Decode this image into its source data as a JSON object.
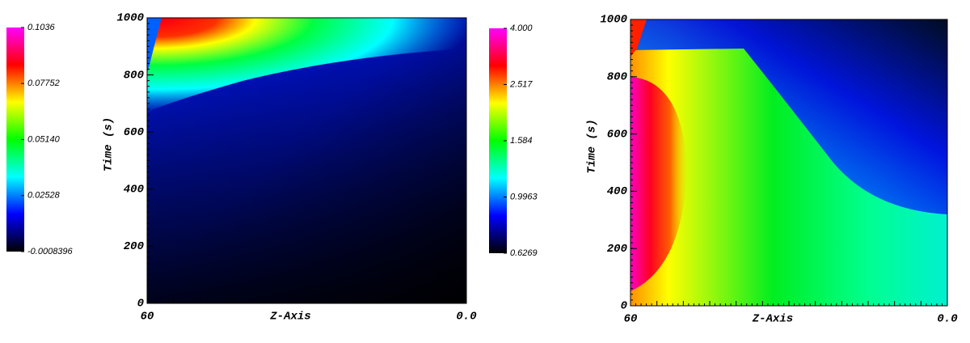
{
  "chart_data": [
    {
      "type": "heatmap",
      "x_label": "Z-Axis",
      "y_label": "Time (s)",
      "xlim": [
        60,
        0
      ],
      "xticks": [
        60,
        {
          "value": 0,
          "label": "0.0"
        }
      ],
      "ylim": [
        0,
        1000
      ],
      "yticks": [
        0,
        200,
        400,
        600,
        800,
        1000
      ],
      "colormap": [
        "#000000",
        "#0000ff",
        "#00ffff",
        "#00ff00",
        "#ffff00",
        "#ff0000",
        "#ff00ff"
      ],
      "colorbar": {
        "lim": [
          -0.0008396,
          0.1036
        ],
        "log": false,
        "ticks": [
          0.1036,
          0.07752,
          {
            "value": 0.0514,
            "label": "0.05140"
          },
          0.02528,
          -0.0008396
        ]
      }
    },
    {
      "type": "heatmap",
      "x_label": "Z-Axis",
      "y_label": "Time (s)",
      "xlim": [
        60,
        0
      ],
      "xticks": [
        60,
        {
          "value": 0,
          "label": "0.0"
        }
      ],
      "ylim": [
        0,
        1000
      ],
      "yticks": [
        0,
        200,
        400,
        600,
        800,
        1000
      ],
      "colormap": [
        "#000000",
        "#0000ff",
        "#00ffff",
        "#00ff00",
        "#ffff00",
        "#ff0000",
        "#ff00ff"
      ],
      "colorbar": {
        "lim": [
          0.6269,
          4
        ],
        "log": true,
        "ticks": [
          {
            "value": 4,
            "label": "4.000"
          },
          {
            "value": 2.517,
            "label": "2.517"
          },
          1.584,
          0.9963,
          0.6269
        ]
      }
    }
  ]
}
